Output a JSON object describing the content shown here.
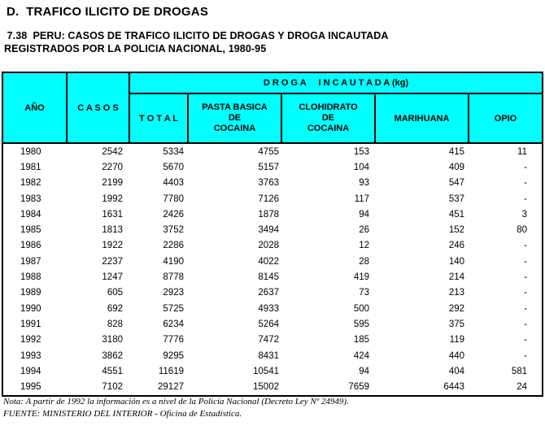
{
  "page": {
    "section_title": "D.  TRAFICO ILICITO DE DROGAS",
    "table_title_line1": " 7.38  PERU: CASOS DE TRAFICO ILICITO DE DROGAS Y DROGA INCAUTADA",
    "table_title_line2": "REGISTRADOS POR LA POLICIA NACIONAL, 1980-95"
  },
  "table": {
    "headers": {
      "anio": "AÑO",
      "casos": "C A S O S",
      "droga_group": "D R O G A     I N C A U T A D A (kg)",
      "total": "T O T A L",
      "pasta_basica": "PASTA BASICA\nDE\nCOCAINA",
      "clohidrato": "CLOHIDRATO\nDE\nCOCAINA",
      "marihuana": "MARIHUANA",
      "opio": "OPIO"
    },
    "rows": [
      {
        "year": "1980",
        "values": [
          "2542",
          "5334",
          "4755",
          "153",
          "415",
          "11"
        ]
      },
      {
        "year": "1981",
        "values": [
          "2270",
          "5670",
          "5157",
          "104",
          "409",
          "-"
        ]
      },
      {
        "year": "1982",
        "values": [
          "2199",
          "4403",
          "3763",
          "93",
          "547",
          "-"
        ]
      },
      {
        "year": "1983",
        "values": [
          "1992",
          "7780",
          "7126",
          "117",
          "537",
          "-"
        ]
      },
      {
        "year": "1984",
        "values": [
          "1631",
          "2426",
          "1878",
          "94",
          "451",
          "3"
        ]
      },
      {
        "year": "1985",
        "values": [
          "1813",
          "3752",
          "3494",
          "26",
          "152",
          "80"
        ]
      },
      {
        "year": "1986",
        "values": [
          "1922",
          "2286",
          "2028",
          "12",
          "246",
          "-"
        ]
      },
      {
        "year": "1987",
        "values": [
          "2237",
          "4190",
          "4022",
          "28",
          "140",
          "-"
        ]
      },
      {
        "year": "1988",
        "values": [
          "1247",
          "8778",
          "8145",
          "419",
          "214",
          "-"
        ]
      },
      {
        "year": "1989",
        "values": [
          "605",
          "2923",
          "2637",
          "73",
          "213",
          "-"
        ]
      },
      {
        "year": "1990",
        "values": [
          "692",
          "5725",
          "4933",
          "500",
          "292",
          "-"
        ]
      },
      {
        "year": "1991",
        "values": [
          "828",
          "6234",
          "5264",
          "595",
          "375",
          "-"
        ]
      },
      {
        "year": "1992",
        "values": [
          "3180",
          "7776",
          "7472",
          "185",
          "119",
          "-"
        ]
      },
      {
        "year": "1993",
        "values": [
          "3862",
          "9295",
          "8431",
          "424",
          "440",
          "-"
        ]
      },
      {
        "year": "1994",
        "values": [
          "4551",
          "11619",
          "10541",
          "94",
          "404",
          "581"
        ]
      },
      {
        "year": "1995",
        "values": [
          "7102",
          "29127",
          "15002",
          "7659",
          "6443",
          "24"
        ]
      }
    ]
  },
  "footnotes": {
    "nota": "Nota: A partir de 1992 la información es a nivel de la Policía Nacional (Decreto Ley Nº 24949).",
    "fuente": "FUENTE: MINISTERIO DEL INTERIOR - Oficina de Estadística."
  },
  "colors": {
    "header_bg": "#00FFFF",
    "border": "#000000",
    "text": "#000000"
  }
}
